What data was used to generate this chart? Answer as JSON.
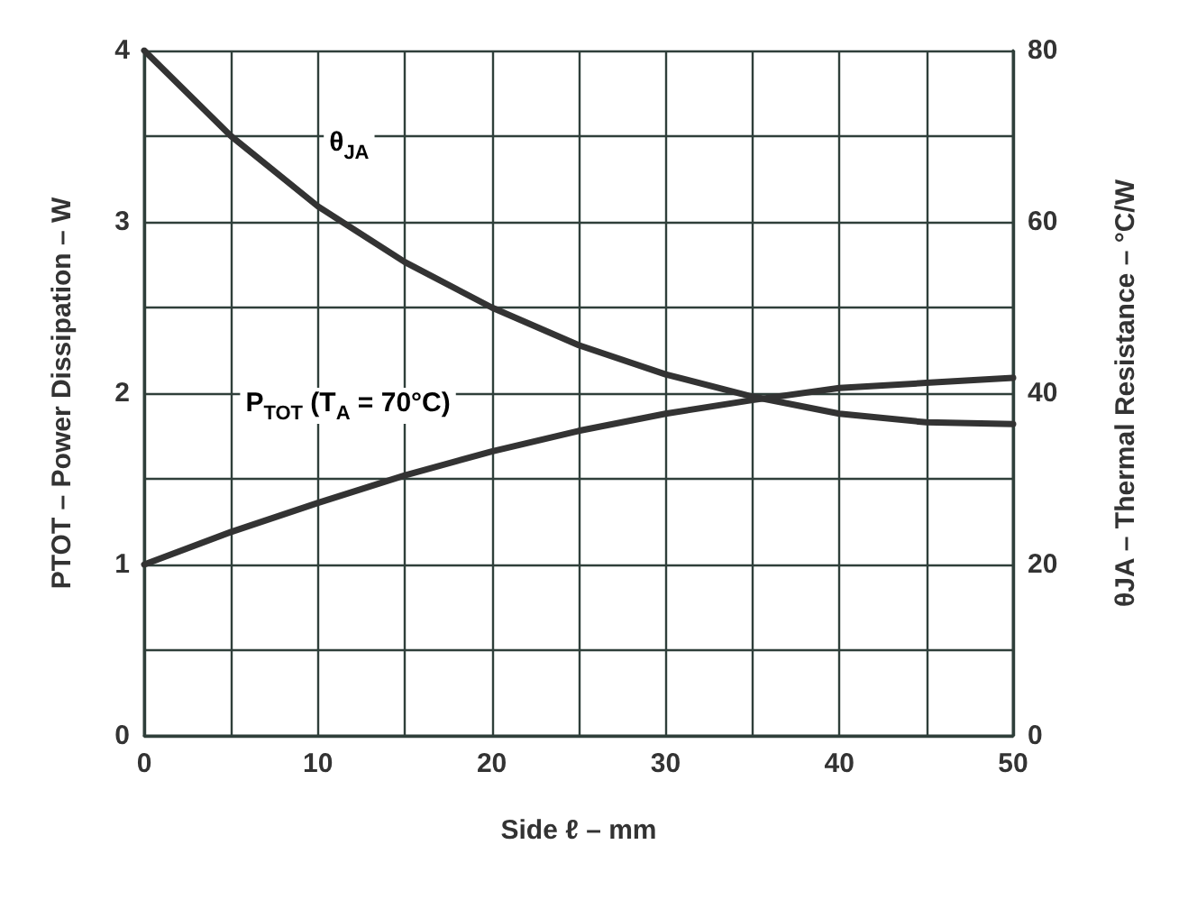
{
  "chart_data": {
    "type": "line",
    "xlabel": "Side ℓ – mm",
    "ylabel": "PTOT – Power Dissipation – W",
    "y2label": "θJA – Thermal Resistance – °C/W",
    "x": [
      0,
      5,
      10,
      15,
      20,
      25,
      30,
      35,
      40,
      45,
      50
    ],
    "series": [
      {
        "name": "θ$_{JA}$",
        "color": "#333333",
        "axis": "y2",
        "values": [
          80,
          70,
          61.8,
          55.3,
          50,
          45.6,
          42.2,
          39.6,
          37.6,
          36.6,
          36.4
        ]
      },
      {
        "name": "P$_{TOT}$ (T$_{A}$ = 70°C)",
        "color": "#333333",
        "values": [
          1.0,
          1.19,
          1.36,
          1.52,
          1.66,
          1.78,
          1.88,
          1.96,
          2.03,
          2.06,
          2.09
        ]
      }
    ],
    "xlim": [
      0,
      50
    ],
    "xticks": [
      0,
      {
        "value": 5,
        "label": null
      },
      10,
      {
        "value": 15,
        "label": null
      },
      20,
      {
        "value": 25,
        "label": null
      },
      30,
      {
        "value": 35,
        "label": null
      },
      40,
      {
        "value": 45,
        "label": null
      },
      50
    ],
    "ylim": [
      0,
      4
    ],
    "yticks": [
      0,
      {
        "value": 0.5,
        "label": null
      },
      1,
      {
        "value": 1.5,
        "label": null
      },
      2,
      {
        "value": 2.5,
        "label": null
      },
      3,
      {
        "value": 3.5,
        "label": null
      },
      4
    ],
    "y2lim": [
      0,
      80
    ],
    "y2ticks": [
      0,
      20,
      40,
      60,
      80
    ],
    "grid": true,
    "legend": false,
    "marker": "none",
    "line_style": "solid"
  }
}
